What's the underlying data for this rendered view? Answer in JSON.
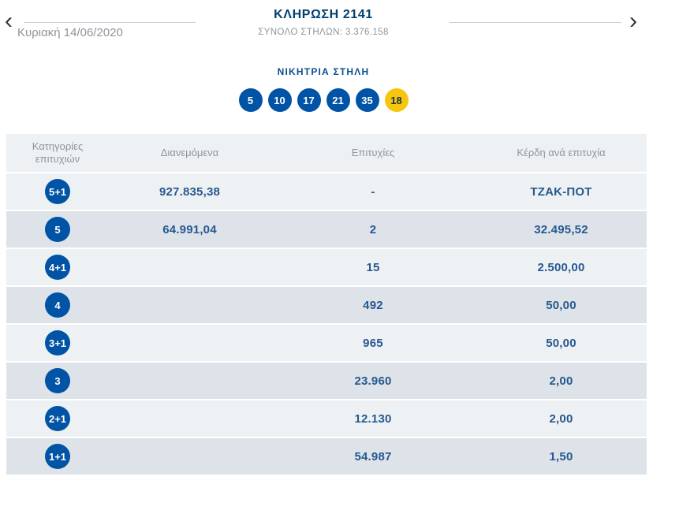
{
  "colors": {
    "accent_blue": "#0053a5",
    "joker_yellow": "#f6c50e",
    "value_blue": "#27588f",
    "title_blue": "#00406e",
    "row_light": "#eef1f4",
    "row_dark": "#dde3e9",
    "muted_gray": "#8d959c"
  },
  "header": {
    "title": "ΚΛΗΡΩΣΗ 2141",
    "total_columns": "ΣΥΝΟΛΟ ΣΤΗΛΩΝ: 3.376.158",
    "date": "Κυριακή 14/06/2020",
    "prev_glyph": "‹",
    "next_glyph": "›"
  },
  "winning": {
    "label": "ΝΙΚΗΤΡΙΑ ΣΤΗΛΗ",
    "numbers": [
      "5",
      "10",
      "17",
      "21",
      "35"
    ],
    "joker": "18"
  },
  "table": {
    "columns": [
      "Κατηγορίες επιτυχιών",
      "Διανεμόμενα",
      "Επιτυχίες",
      "Κέρδη ανά επιτυχία"
    ],
    "rows": [
      {
        "category": "5+1",
        "distributed": "927.835,38",
        "wins": "-",
        "prize": "ΤΖΑΚ-ΠΟΤ"
      },
      {
        "category": "5",
        "distributed": "64.991,04",
        "wins": "2",
        "prize": "32.495,52"
      },
      {
        "category": "4+1",
        "distributed": "",
        "wins": "15",
        "prize": "2.500,00"
      },
      {
        "category": "4",
        "distributed": "",
        "wins": "492",
        "prize": "50,00"
      },
      {
        "category": "3+1",
        "distributed": "",
        "wins": "965",
        "prize": "50,00"
      },
      {
        "category": "3",
        "distributed": "",
        "wins": "23.960",
        "prize": "2,00"
      },
      {
        "category": "2+1",
        "distributed": "",
        "wins": "12.130",
        "prize": "2,00"
      },
      {
        "category": "1+1",
        "distributed": "",
        "wins": "54.987",
        "prize": "1,50"
      }
    ]
  }
}
